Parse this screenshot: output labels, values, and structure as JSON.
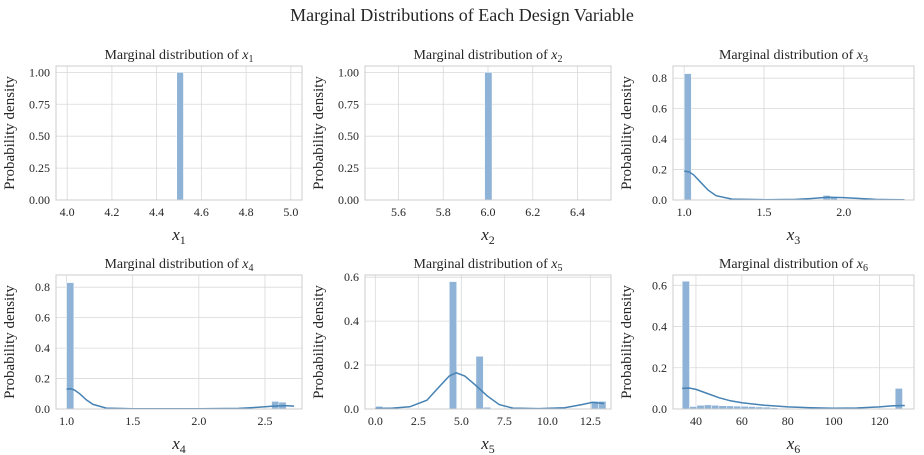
{
  "figure": {
    "suptitle": "Marginal Distributions of Each Design Variable"
  },
  "style": {
    "bar_color": "#8fb3d6",
    "kde_color": "#4682b4",
    "grid_color": "#d9d9d9",
    "spine_color": "#cccccc"
  },
  "chart_data": [
    {
      "type": "bar",
      "title": "Marginal distribution of x1",
      "title_prefix": "Marginal distribution of ",
      "var": "x",
      "sub": "1",
      "xlabel": "x1",
      "ylabel": "Probability density",
      "xlim": [
        3.95,
        5.05
      ],
      "ylim": [
        0,
        1.05
      ],
      "xticks": [
        4.0,
        4.2,
        4.4,
        4.6,
        4.8,
        5.0
      ],
      "xtick_labels": [
        "4.0",
        "4.2",
        "4.4",
        "4.6",
        "4.8",
        "5.0"
      ],
      "yticks": [
        0,
        0.25,
        0.5,
        0.75,
        1.0
      ],
      "ytick_labels": [
        "0.00",
        "0.25",
        "0.50",
        "0.75",
        "1.00"
      ],
      "bars": [
        {
          "x0": 4.49,
          "x1": 4.52,
          "h": 1.0
        }
      ],
      "kde": []
    },
    {
      "type": "bar",
      "title": "Marginal distribution of x2",
      "title_prefix": "Marginal distribution of ",
      "var": "x",
      "sub": "2",
      "xlabel": "x2",
      "ylabel": "Probability density",
      "xlim": [
        5.45,
        6.55
      ],
      "ylim": [
        0,
        1.05
      ],
      "xticks": [
        5.6,
        5.8,
        6.0,
        6.2,
        6.4
      ],
      "xtick_labels": [
        "5.6",
        "5.8",
        "6.0",
        "6.2",
        "6.4"
      ],
      "yticks": [
        0,
        0.25,
        0.5,
        0.75,
        1.0
      ],
      "ytick_labels": [
        "0.00",
        "0.25",
        "0.50",
        "0.75",
        "1.00"
      ],
      "bars": [
        {
          "x0": 5.985,
          "x1": 6.018,
          "h": 1.0
        }
      ],
      "kde": []
    },
    {
      "type": "bar",
      "title": "Marginal distribution of x3",
      "title_prefix": "Marginal distribution of ",
      "var": "x",
      "sub": "3",
      "xlabel": "x3",
      "ylabel": "Probability density",
      "xlim": [
        0.93,
        2.44
      ],
      "ylim": [
        0,
        0.88
      ],
      "xticks": [
        1.0,
        1.5,
        2.0
      ],
      "xtick_labels": [
        "1.0",
        "1.5",
        "2.0"
      ],
      "yticks": [
        0,
        0.2,
        0.4,
        0.6,
        0.8
      ],
      "ytick_labels": [
        "0.0",
        "0.2",
        "0.4",
        "0.6",
        "0.8"
      ],
      "bars": [
        {
          "x0": 1.0,
          "x1": 1.045,
          "h": 0.83
        },
        {
          "x0": 1.87,
          "x1": 1.915,
          "h": 0.03
        },
        {
          "x0": 1.915,
          "x1": 1.96,
          "h": 0.02
        }
      ],
      "kde": [
        [
          1.0,
          0.19
        ],
        [
          1.03,
          0.185
        ],
        [
          1.06,
          0.165
        ],
        [
          1.1,
          0.12
        ],
        [
          1.15,
          0.065
        ],
        [
          1.2,
          0.028
        ],
        [
          1.3,
          0.006
        ],
        [
          1.5,
          0.002
        ],
        [
          1.7,
          0.004
        ],
        [
          1.8,
          0.01
        ],
        [
          1.9,
          0.018
        ],
        [
          2.0,
          0.016
        ],
        [
          2.1,
          0.01
        ],
        [
          2.2,
          0.004
        ],
        [
          2.38,
          0.001
        ]
      ]
    },
    {
      "type": "bar",
      "title": "Marginal distribution of x4",
      "title_prefix": "Marginal distribution of ",
      "var": "x",
      "sub": "4",
      "xlabel": "x4",
      "ylabel": "Probability density",
      "xlim": [
        0.92,
        2.78
      ],
      "ylim": [
        0,
        0.88
      ],
      "xticks": [
        1.0,
        1.5,
        2.0,
        2.5
      ],
      "xtick_labels": [
        "1.0",
        "1.5",
        "2.0",
        "2.5"
      ],
      "yticks": [
        0,
        0.2,
        0.4,
        0.6,
        0.8
      ],
      "ytick_labels": [
        "0.0",
        "0.2",
        "0.4",
        "0.6",
        "0.8"
      ],
      "bars": [
        {
          "x0": 1.0,
          "x1": 1.055,
          "h": 0.83
        },
        {
          "x0": 2.55,
          "x1": 2.605,
          "h": 0.05
        },
        {
          "x0": 2.605,
          "x1": 2.66,
          "h": 0.045
        }
      ],
      "kde": [
        [
          1.0,
          0.13
        ],
        [
          1.03,
          0.133
        ],
        [
          1.06,
          0.125
        ],
        [
          1.1,
          0.1
        ],
        [
          1.15,
          0.06
        ],
        [
          1.2,
          0.03
        ],
        [
          1.3,
          0.006
        ],
        [
          1.5,
          0.001
        ],
        [
          2.0,
          0.001
        ],
        [
          2.3,
          0.004
        ],
        [
          2.45,
          0.011
        ],
        [
          2.55,
          0.018
        ],
        [
          2.65,
          0.022
        ],
        [
          2.72,
          0.019
        ]
      ]
    },
    {
      "type": "bar",
      "title": "Marginal distribution of x5",
      "title_prefix": "Marginal distribution of ",
      "var": "x",
      "sub": "5",
      "xlabel": "x5",
      "ylabel": "Probability density",
      "xlim": [
        -0.6,
        13.7
      ],
      "ylim": [
        0,
        0.61
      ],
      "xticks": [
        0.0,
        2.5,
        5.0,
        7.5,
        10.0,
        12.5
      ],
      "xtick_labels": [
        "0.0",
        "2.5",
        "5.0",
        "7.5",
        "10.0",
        "12.5"
      ],
      "yticks": [
        0,
        0.2,
        0.4,
        0.6
      ],
      "ytick_labels": [
        "0.0",
        "0.2",
        "0.4",
        "0.6"
      ],
      "bars": [
        {
          "x0": 0.0,
          "x1": 0.43,
          "h": 0.012
        },
        {
          "x0": 4.3,
          "x1": 4.73,
          "h": 0.58
        },
        {
          "x0": 5.85,
          "x1": 6.28,
          "h": 0.24
        },
        {
          "x0": 6.28,
          "x1": 6.71,
          "h": 0.008
        },
        {
          "x0": 12.55,
          "x1": 12.98,
          "h": 0.035
        },
        {
          "x0": 12.98,
          "x1": 13.41,
          "h": 0.035
        }
      ],
      "kde": [
        [
          0.0,
          0.002
        ],
        [
          1.0,
          0.004
        ],
        [
          2.0,
          0.01
        ],
        [
          3.0,
          0.04
        ],
        [
          3.7,
          0.1
        ],
        [
          4.3,
          0.15
        ],
        [
          4.7,
          0.165
        ],
        [
          5.2,
          0.15
        ],
        [
          5.8,
          0.11
        ],
        [
          6.5,
          0.06
        ],
        [
          7.2,
          0.02
        ],
        [
          8.0,
          0.004
        ],
        [
          9.5,
          0.002
        ],
        [
          11.0,
          0.006
        ],
        [
          12.0,
          0.02
        ],
        [
          12.6,
          0.03
        ],
        [
          13.3,
          0.025
        ]
      ]
    },
    {
      "type": "bar",
      "title": "Marginal distribution of x6",
      "title_prefix": "Marginal distribution of ",
      "var": "x",
      "sub": "6",
      "xlabel": "x6",
      "ylabel": "Probability density",
      "xlim": [
        30,
        135
      ],
      "ylim": [
        0,
        0.65
      ],
      "xticks": [
        40,
        60,
        80,
        100,
        120
      ],
      "xtick_labels": [
        "40",
        "60",
        "80",
        "100",
        "120"
      ],
      "yticks": [
        0,
        0.2,
        0.4,
        0.6
      ],
      "ytick_labels": [
        "0.0",
        "0.2",
        "0.4",
        "0.6"
      ],
      "bars": [
        {
          "x0": 34,
          "x1": 37.2,
          "h": 0.62
        },
        {
          "x0": 37.2,
          "x1": 40.4,
          "h": 0.012
        },
        {
          "x0": 40.4,
          "x1": 43.6,
          "h": 0.018
        },
        {
          "x0": 43.6,
          "x1": 46.8,
          "h": 0.02
        },
        {
          "x0": 46.8,
          "x1": 50.0,
          "h": 0.018
        },
        {
          "x0": 50.0,
          "x1": 53.2,
          "h": 0.016
        },
        {
          "x0": 53.2,
          "x1": 56.4,
          "h": 0.015
        },
        {
          "x0": 56.4,
          "x1": 59.6,
          "h": 0.014
        },
        {
          "x0": 59.6,
          "x1": 62.8,
          "h": 0.013
        },
        {
          "x0": 62.8,
          "x1": 66.0,
          "h": 0.012
        },
        {
          "x0": 66.0,
          "x1": 69.2,
          "h": 0.01
        },
        {
          "x0": 69.2,
          "x1": 72.4,
          "h": 0.009
        },
        {
          "x0": 72.4,
          "x1": 75.6,
          "h": 0.006
        },
        {
          "x0": 126.8,
          "x1": 130.0,
          "h": 0.1
        }
      ],
      "kde": [
        [
          34,
          0.1
        ],
        [
          37,
          0.102
        ],
        [
          40,
          0.095
        ],
        [
          45,
          0.075
        ],
        [
          50,
          0.055
        ],
        [
          55,
          0.04
        ],
        [
          60,
          0.03
        ],
        [
          70,
          0.018
        ],
        [
          80,
          0.01
        ],
        [
          90,
          0.006
        ],
        [
          100,
          0.004
        ],
        [
          110,
          0.005
        ],
        [
          120,
          0.01
        ],
        [
          126,
          0.016
        ],
        [
          131,
          0.017
        ]
      ]
    }
  ]
}
